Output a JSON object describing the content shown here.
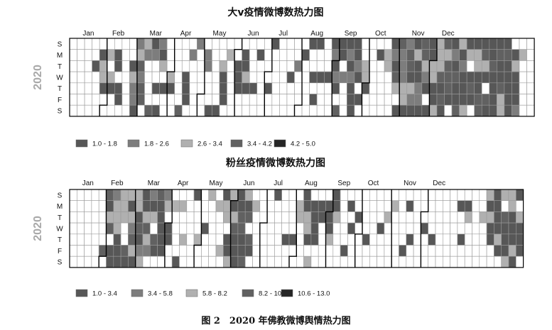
{
  "caption": "图 2　2020 年佛教微博舆情热力图",
  "chart_data": [
    {
      "type": "heatmap",
      "title": "大v疫情微博数热力图",
      "ylabel": "2020",
      "year": 2020,
      "months": [
        "Jan",
        "Feb",
        "Mar",
        "Apr",
        "May",
        "Jun",
        "Jul",
        "Aug",
        "Sep",
        "Oct",
        "Nov",
        "Dec"
      ],
      "weekdays": [
        "S",
        "M",
        "T",
        "W",
        "T",
        "F",
        "S"
      ],
      "legend": [
        {
          "label": "1.0 - 1.8",
          "color": "#575757"
        },
        {
          "label": "1.8 - 2.6",
          "color": "#7d7d7d"
        },
        {
          "label": "2.6 - 3.4",
          "color": "#b0b0b0"
        },
        {
          "label": "3.4 - 4.2",
          "color": "#616161"
        },
        {
          "label": "4.2 - 5.0",
          "color": "#262626"
        }
      ],
      "weeks": [
        "0000000",
        "0000000",
        "0000000",
        "0010000",
        "0133100",
        "0303100",
        "0110110",
        "0000000",
        "0013221",
        "2342440",
        "3200004",
        "1200101",
        "2130100",
        "0003100",
        "0000004",
        "0001110",
        "0200000",
        "2000000",
        "0220001",
        "0000001",
        "0031110",
        "0300000",
        "0011100",
        "0113100",
        "0000100",
        "0100000",
        "0000100",
        "1000000",
        "0000000",
        "0001000",
        "0020000",
        "0100000",
        "1001010",
        "1001000",
        "0001000",
        "1212104",
        "1102000",
        "1212111",
        "1121010",
        "0033100",
        "0000000",
        "0100000",
        "0330000",
        "1214301",
        "4222331",
        "2441321",
        "1311221",
        "4432101",
        "1133113",
        "3334141",
        "4344410",
        "1214114",
        "3121113",
        "1301410",
        "1331144",
        "1431041",
        "1141111",
        "1411433",
        "1411111",
        "0131112",
        "0300000",
        "0000000"
      ]
    },
    {
      "type": "heatmap",
      "title": "粉丝疫情微博数热力图",
      "ylabel": "2020",
      "year": 2020,
      "months": [
        "Jan",
        "Feb",
        "Mar",
        "Apr",
        "May",
        "Jun",
        "Jul",
        "Aug",
        "Sep",
        "Oct",
        "Nov",
        "Dec"
      ],
      "weekdays": [
        "S",
        "M",
        "T",
        "W",
        "T",
        "F",
        "S"
      ],
      "legend": [
        {
          "label": "1.0 - 3.4",
          "color": "#575757"
        },
        {
          "label": "3.4 - 5.8",
          "color": "#7d7d7d"
        },
        {
          "label": "5.8 - 8.2",
          "color": "#b0b0b0"
        },
        {
          "label": "8.2 - 10.6",
          "color": "#616161"
        },
        {
          "label": "10.6 - 13.0",
          "color": "#262626"
        }
      ],
      "weeks": [
        "0000000",
        "0000000",
        "0000000",
        "0000000",
        "0000040",
        "4134011",
        "2333111",
        "3330041",
        "3132431",
        "3314123",
        "1134320",
        "2130410",
        "4111110",
        "2301100",
        "0300001",
        "0300300",
        "0000000",
        "1000300",
        "0001000",
        "3000000",
        "0300030",
        "1330113",
        "3134111",
        "1144114",
        "3140410",
        "0300000",
        "0000000",
        "0000000",
        "1000000",
        "0000100",
        "0000100",
        "0330000",
        "1133103",
        "0111100",
        "0110000",
        "0111300",
        "1130000",
        "0000010",
        "0101000",
        "0010000",
        "0000100",
        "0000000",
        "0001000",
        "0030000",
        "0300000",
        "0000010",
        "0100100",
        "0000000",
        "0001000",
        "0000100",
        "0000000",
        "0000000",
        "0000000",
        "0100100",
        "0130000",
        "0000000",
        "0030000",
        "3131100",
        "1111310",
        "3041113",
        "3311131",
        "1031110"
      ]
    }
  ]
}
